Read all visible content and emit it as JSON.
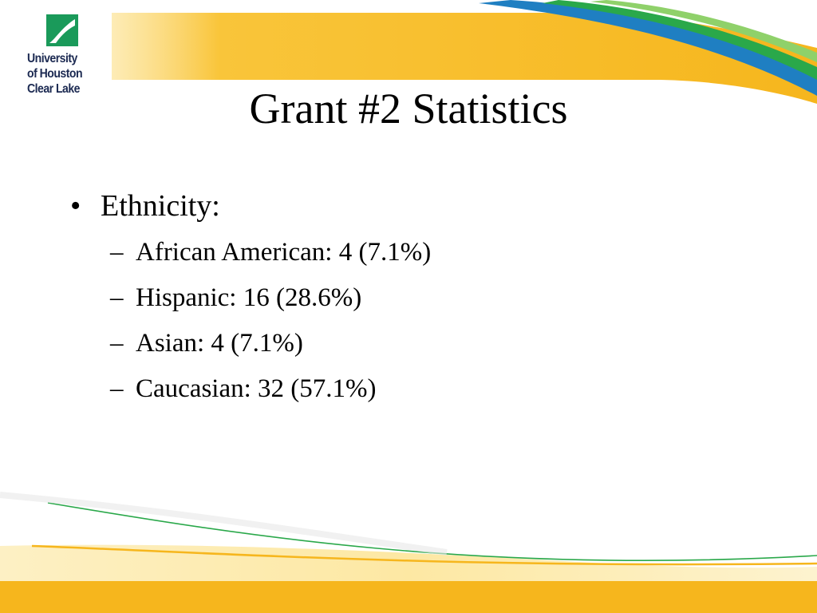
{
  "slide": {
    "title": "Grant #2 Statistics",
    "bullet_marker": "•",
    "sub_marker": "–",
    "bullets": [
      {
        "text": "Ethnicity:",
        "sub_items": [
          "African American: 4 (7.1%)",
          "Hispanic: 16 (28.6%)",
          "Asian: 4 (7.1%)",
          "Caucasian: 32 (57.1%)"
        ]
      }
    ]
  },
  "logo": {
    "line1": "University",
    "line2": "of Houston",
    "line3": "Clear Lake",
    "mark_color": "#1a9a5a"
  },
  "theme": {
    "gold": "#f6b61d",
    "gold_light": "#fce9a8",
    "green": "#2aa84a",
    "blue": "#1f7fc2",
    "navy": "#1c2a52"
  }
}
